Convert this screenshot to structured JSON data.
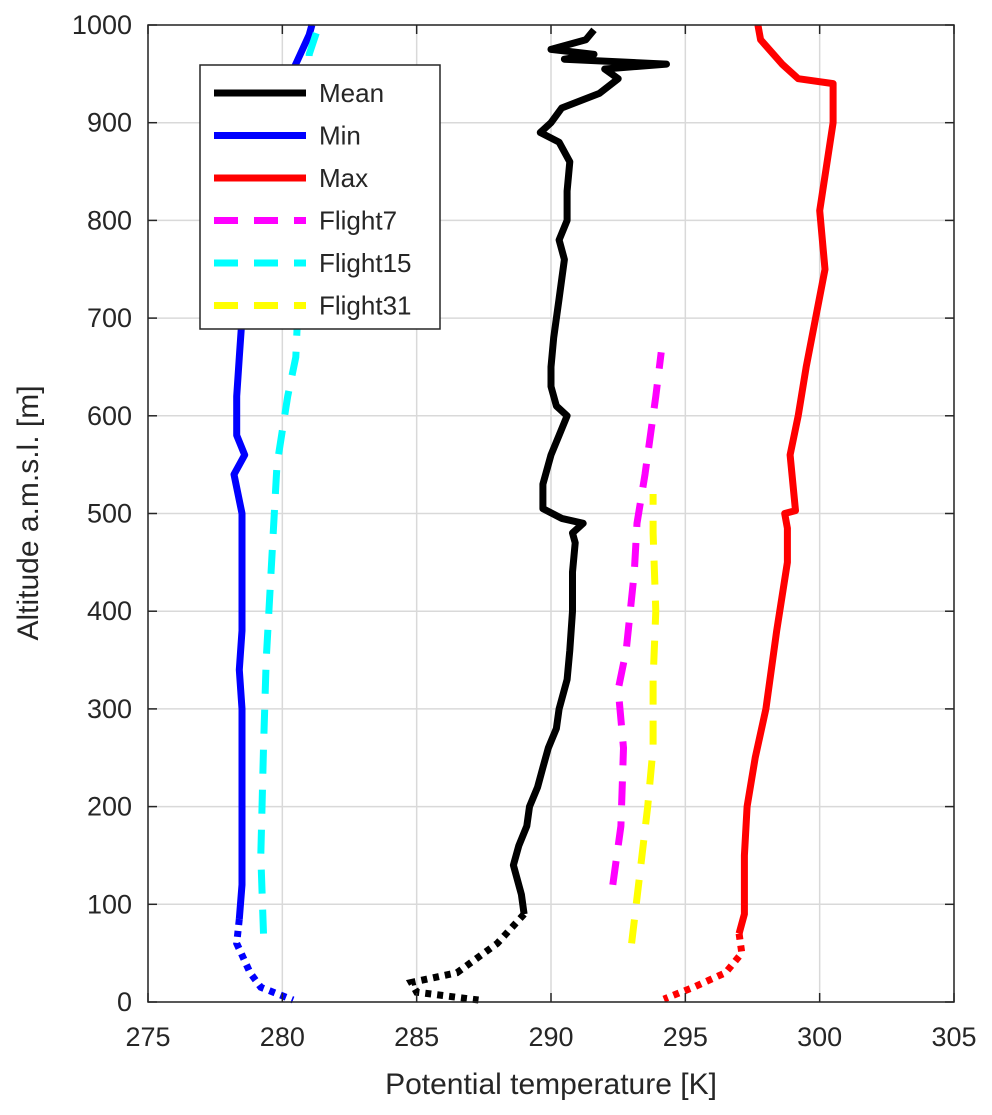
{
  "chart_data": {
    "type": "line",
    "xlabel": "Potential temperature [K]",
    "ylabel": "Altitude a.m.s.l. [m]",
    "xlim": [
      275,
      305
    ],
    "ylim": [
      0,
      1000
    ],
    "xticks": [
      275,
      280,
      285,
      290,
      295,
      300,
      305
    ],
    "yticks": [
      0,
      100,
      200,
      300,
      400,
      500,
      600,
      700,
      800,
      900,
      1000
    ],
    "grid": true,
    "legend_position": "top-left",
    "series": [
      {
        "name": "Mean",
        "color": "#000000",
        "style": "solid",
        "points": [
          [
            289.0,
            90
          ],
          [
            288.9,
            110
          ],
          [
            288.6,
            140
          ],
          [
            288.8,
            160
          ],
          [
            289.1,
            180
          ],
          [
            289.2,
            200
          ],
          [
            289.5,
            220
          ],
          [
            289.7,
            240
          ],
          [
            289.9,
            260
          ],
          [
            290.2,
            280
          ],
          [
            290.3,
            300
          ],
          [
            290.6,
            330
          ],
          [
            290.7,
            360
          ],
          [
            290.8,
            400
          ],
          [
            290.8,
            440
          ],
          [
            290.9,
            470
          ],
          [
            290.8,
            480
          ],
          [
            291.2,
            490
          ],
          [
            290.4,
            495
          ],
          [
            289.7,
            505
          ],
          [
            289.7,
            530
          ],
          [
            290.0,
            560
          ],
          [
            290.3,
            580
          ],
          [
            290.6,
            600
          ],
          [
            290.2,
            610
          ],
          [
            290.0,
            630
          ],
          [
            290.0,
            650
          ],
          [
            290.1,
            680
          ],
          [
            290.3,
            720
          ],
          [
            290.5,
            760
          ],
          [
            290.3,
            780
          ],
          [
            290.6,
            800
          ],
          [
            290.6,
            830
          ],
          [
            290.7,
            860
          ],
          [
            290.3,
            880
          ],
          [
            289.6,
            890
          ],
          [
            290.0,
            900
          ],
          [
            290.4,
            915
          ],
          [
            291.8,
            930
          ],
          [
            292.5,
            945
          ],
          [
            292.0,
            955
          ],
          [
            294.3,
            960
          ],
          [
            290.5,
            965
          ],
          [
            291.6,
            970
          ],
          [
            290.0,
            975
          ],
          [
            291.3,
            985
          ],
          [
            291.6,
            995
          ]
        ]
      },
      {
        "name": "Min",
        "color": "#0000ff",
        "style": "solid",
        "points": [
          [
            278.4,
            85
          ],
          [
            278.5,
            120
          ],
          [
            278.5,
            160
          ],
          [
            278.5,
            200
          ],
          [
            278.5,
            260
          ],
          [
            278.5,
            300
          ],
          [
            278.4,
            340
          ],
          [
            278.5,
            380
          ],
          [
            278.5,
            440
          ],
          [
            278.5,
            500
          ],
          [
            278.2,
            540
          ],
          [
            278.6,
            560
          ],
          [
            278.3,
            580
          ],
          [
            278.3,
            620
          ],
          [
            278.4,
            660
          ],
          [
            278.5,
            700
          ],
          [
            278.6,
            750
          ],
          [
            279.0,
            850
          ],
          [
            279.5,
            900
          ],
          [
            280.5,
            960
          ],
          [
            281.0,
            990
          ],
          [
            281.1,
            1000
          ]
        ]
      },
      {
        "name": "Max",
        "color": "#ff0000",
        "style": "solid",
        "points": [
          [
            297.0,
            70
          ],
          [
            297.2,
            90
          ],
          [
            297.2,
            150
          ],
          [
            297.3,
            200
          ],
          [
            297.6,
            250
          ],
          [
            298.0,
            300
          ],
          [
            298.4,
            380
          ],
          [
            298.8,
            450
          ],
          [
            298.8,
            485
          ],
          [
            298.7,
            500
          ],
          [
            299.1,
            503
          ],
          [
            298.9,
            560
          ],
          [
            299.2,
            600
          ],
          [
            299.5,
            650
          ],
          [
            300.2,
            750
          ],
          [
            300.0,
            810
          ],
          [
            300.5,
            900
          ],
          [
            300.5,
            940
          ],
          [
            299.2,
            945
          ],
          [
            298.6,
            960
          ],
          [
            297.8,
            985
          ],
          [
            297.7,
            1000
          ]
        ]
      },
      {
        "name": "Flight7",
        "color": "#ff00ff",
        "style": "dashed",
        "points": [
          [
            292.3,
            120
          ],
          [
            292.6,
            180
          ],
          [
            292.7,
            260
          ],
          [
            292.5,
            320
          ],
          [
            292.8,
            360
          ],
          [
            293.1,
            440
          ],
          [
            293.2,
            490
          ],
          [
            293.5,
            540
          ],
          [
            293.7,
            580
          ],
          [
            293.9,
            620
          ],
          [
            294.1,
            665
          ]
        ]
      },
      {
        "name": "Flight15",
        "color": "#00ffff",
        "style": "dashed",
        "points": [
          [
            279.3,
            70
          ],
          [
            279.2,
            150
          ],
          [
            279.3,
            260
          ],
          [
            279.4,
            350
          ],
          [
            279.6,
            450
          ],
          [
            279.8,
            550
          ],
          [
            280.2,
            620
          ],
          [
            280.5,
            660
          ],
          [
            281.0,
            970
          ],
          [
            281.3,
            995
          ]
        ]
      },
      {
        "name": "Flight31",
        "color": "#ffff00",
        "style": "dashed",
        "points": [
          [
            293.0,
            60
          ],
          [
            293.3,
            130
          ],
          [
            293.6,
            200
          ],
          [
            293.8,
            260
          ],
          [
            293.8,
            330
          ],
          [
            293.9,
            400
          ],
          [
            293.8,
            480
          ],
          [
            293.8,
            520
          ]
        ]
      }
    ],
    "near_surface_dotted": [
      {
        "color": "#000000",
        "points": [
          [
            289.0,
            90
          ],
          [
            288.0,
            60
          ],
          [
            286.5,
            30
          ],
          [
            284.8,
            20
          ],
          [
            285.0,
            10
          ],
          [
            287.3,
            2
          ]
        ]
      },
      {
        "color": "#0000ff",
        "points": [
          [
            278.4,
            85
          ],
          [
            278.3,
            60
          ],
          [
            278.8,
            30
          ],
          [
            279.2,
            15
          ],
          [
            280.4,
            2
          ]
        ]
      },
      {
        "color": "#ff0000",
        "points": [
          [
            297.0,
            70
          ],
          [
            297.1,
            50
          ],
          [
            296.5,
            30
          ],
          [
            295.3,
            15
          ],
          [
            294.2,
            3
          ]
        ]
      }
    ]
  }
}
